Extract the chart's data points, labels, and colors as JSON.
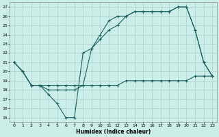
{
  "xlabel": "Humidex (Indice chaleur)",
  "background_color": "#cceee8",
  "grid_color": "#aacccc",
  "line_color": "#1a6060",
  "xlim": [
    -0.5,
    23.5
  ],
  "ylim": [
    14.5,
    27.5
  ],
  "yticks": [
    15,
    16,
    17,
    18,
    19,
    20,
    21,
    22,
    23,
    24,
    25,
    26,
    27
  ],
  "xticks": [
    0,
    1,
    2,
    3,
    4,
    5,
    6,
    7,
    8,
    9,
    10,
    11,
    12,
    13,
    14,
    15,
    16,
    17,
    18,
    19,
    20,
    21,
    22,
    23
  ],
  "line1_x": [
    0,
    1,
    2,
    3,
    4,
    5,
    6,
    7,
    8,
    9,
    10,
    11,
    12,
    13,
    14,
    15,
    16,
    17,
    18,
    19,
    20,
    21,
    22,
    23
  ],
  "line1_y": [
    21.0,
    20.0,
    18.5,
    18.5,
    17.5,
    16.5,
    15.0,
    15.0,
    22.0,
    22.5,
    23.5,
    24.5,
    25.0,
    26.0,
    26.5,
    26.5,
    26.5,
    26.5,
    26.5,
    27.0,
    27.0,
    24.5,
    21.0,
    19.5
  ],
  "line2_x": [
    0,
    1,
    2,
    3,
    4,
    5,
    6,
    7,
    8,
    9,
    10,
    11,
    12,
    13,
    14,
    15,
    16,
    17,
    18,
    19,
    20,
    21,
    22,
    23
  ],
  "line2_y": [
    21.0,
    20.0,
    18.5,
    18.5,
    18.5,
    18.5,
    18.5,
    18.5,
    18.5,
    22.5,
    24.0,
    25.5,
    26.0,
    26.0,
    26.5,
    26.5,
    26.5,
    26.5,
    26.5,
    27.0,
    27.0,
    24.5,
    21.0,
    19.5
  ],
  "line3_x": [
    0,
    1,
    2,
    3,
    4,
    5,
    6,
    7,
    8,
    9,
    10,
    11,
    12,
    13,
    14,
    15,
    16,
    17,
    18,
    19,
    20,
    21,
    22,
    23
  ],
  "line3_y": [
    21.0,
    20.0,
    18.5,
    18.5,
    18.0,
    18.0,
    18.0,
    18.0,
    18.5,
    18.5,
    18.5,
    18.5,
    18.5,
    19.0,
    19.0,
    19.0,
    19.0,
    19.0,
    19.0,
    19.0,
    19.0,
    19.5,
    19.5,
    19.5
  ]
}
